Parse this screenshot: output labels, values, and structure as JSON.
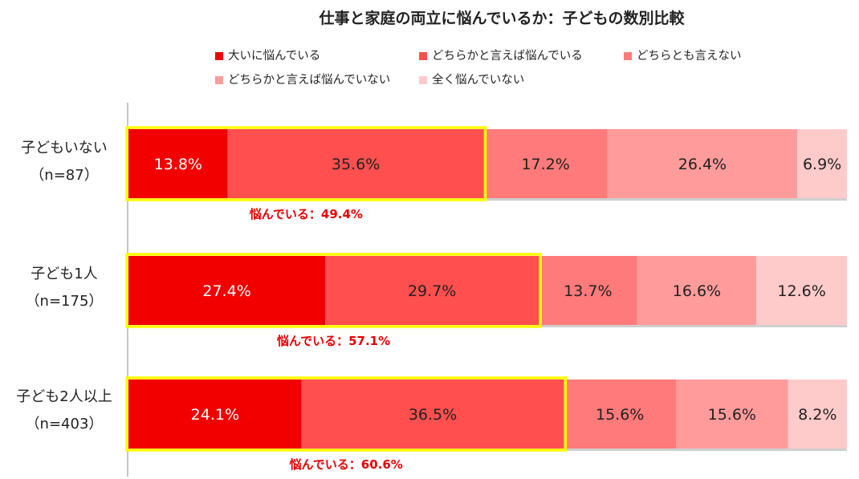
{
  "chart_data": {
    "type": "bar",
    "orientation": "horizontal",
    "stacked": true,
    "normalized_percent": true,
    "title": "仕事と家庭の両立に悩んでいるか：子どもの数別比較",
    "categories": [
      {
        "name": "子どもいない",
        "n": "（n=87）"
      },
      {
        "name": "子ども1人",
        "n": "（n=175）"
      },
      {
        "name": "子ども2人以上",
        "n": "（n=403）"
      }
    ],
    "series": [
      {
        "name": "大いに悩んでいる",
        "color": "#f20000",
        "label_color": "#ffffff",
        "values": [
          13.8,
          27.4,
          24.1
        ]
      },
      {
        "name": "どちらかと言えば悩んでいる",
        "color": "#ff4f4f",
        "label_color": "#222222",
        "values": [
          35.6,
          29.7,
          36.5
        ]
      },
      {
        "name": "どちらとも言えない",
        "color": "#ff7a7a",
        "label_color": "#222222",
        "values": [
          17.2,
          13.7,
          15.6
        ]
      },
      {
        "name": "どちらかと言えば悩んでいない",
        "color": "#ff9b9b",
        "label_color": "#222222",
        "values": [
          26.4,
          16.6,
          15.6
        ]
      },
      {
        "name": "全く悩んでいない",
        "color": "#ffcaca",
        "label_color": "#222222",
        "values": [
          6.9,
          12.6,
          8.2
        ]
      }
    ],
    "value_labels": [
      [
        "13.8%",
        "35.6%",
        "17.2%",
        "26.4%",
        "6.9%"
      ],
      [
        "27.4%",
        "29.7%",
        "13.7%",
        "16.6%",
        "12.6%"
      ],
      [
        "24.1%",
        "36.5%",
        "15.6%",
        "15.6%",
        "8.2%"
      ]
    ],
    "annotations": [
      "悩んでいる：49.4%",
      "悩んでいる：57.1%",
      "悩んでいる：60.6%"
    ],
    "annotation_color": "#e60000",
    "highlight_color": "#ffff00",
    "xlim": [
      0,
      100
    ],
    "legend_position": "top",
    "grid": false
  }
}
